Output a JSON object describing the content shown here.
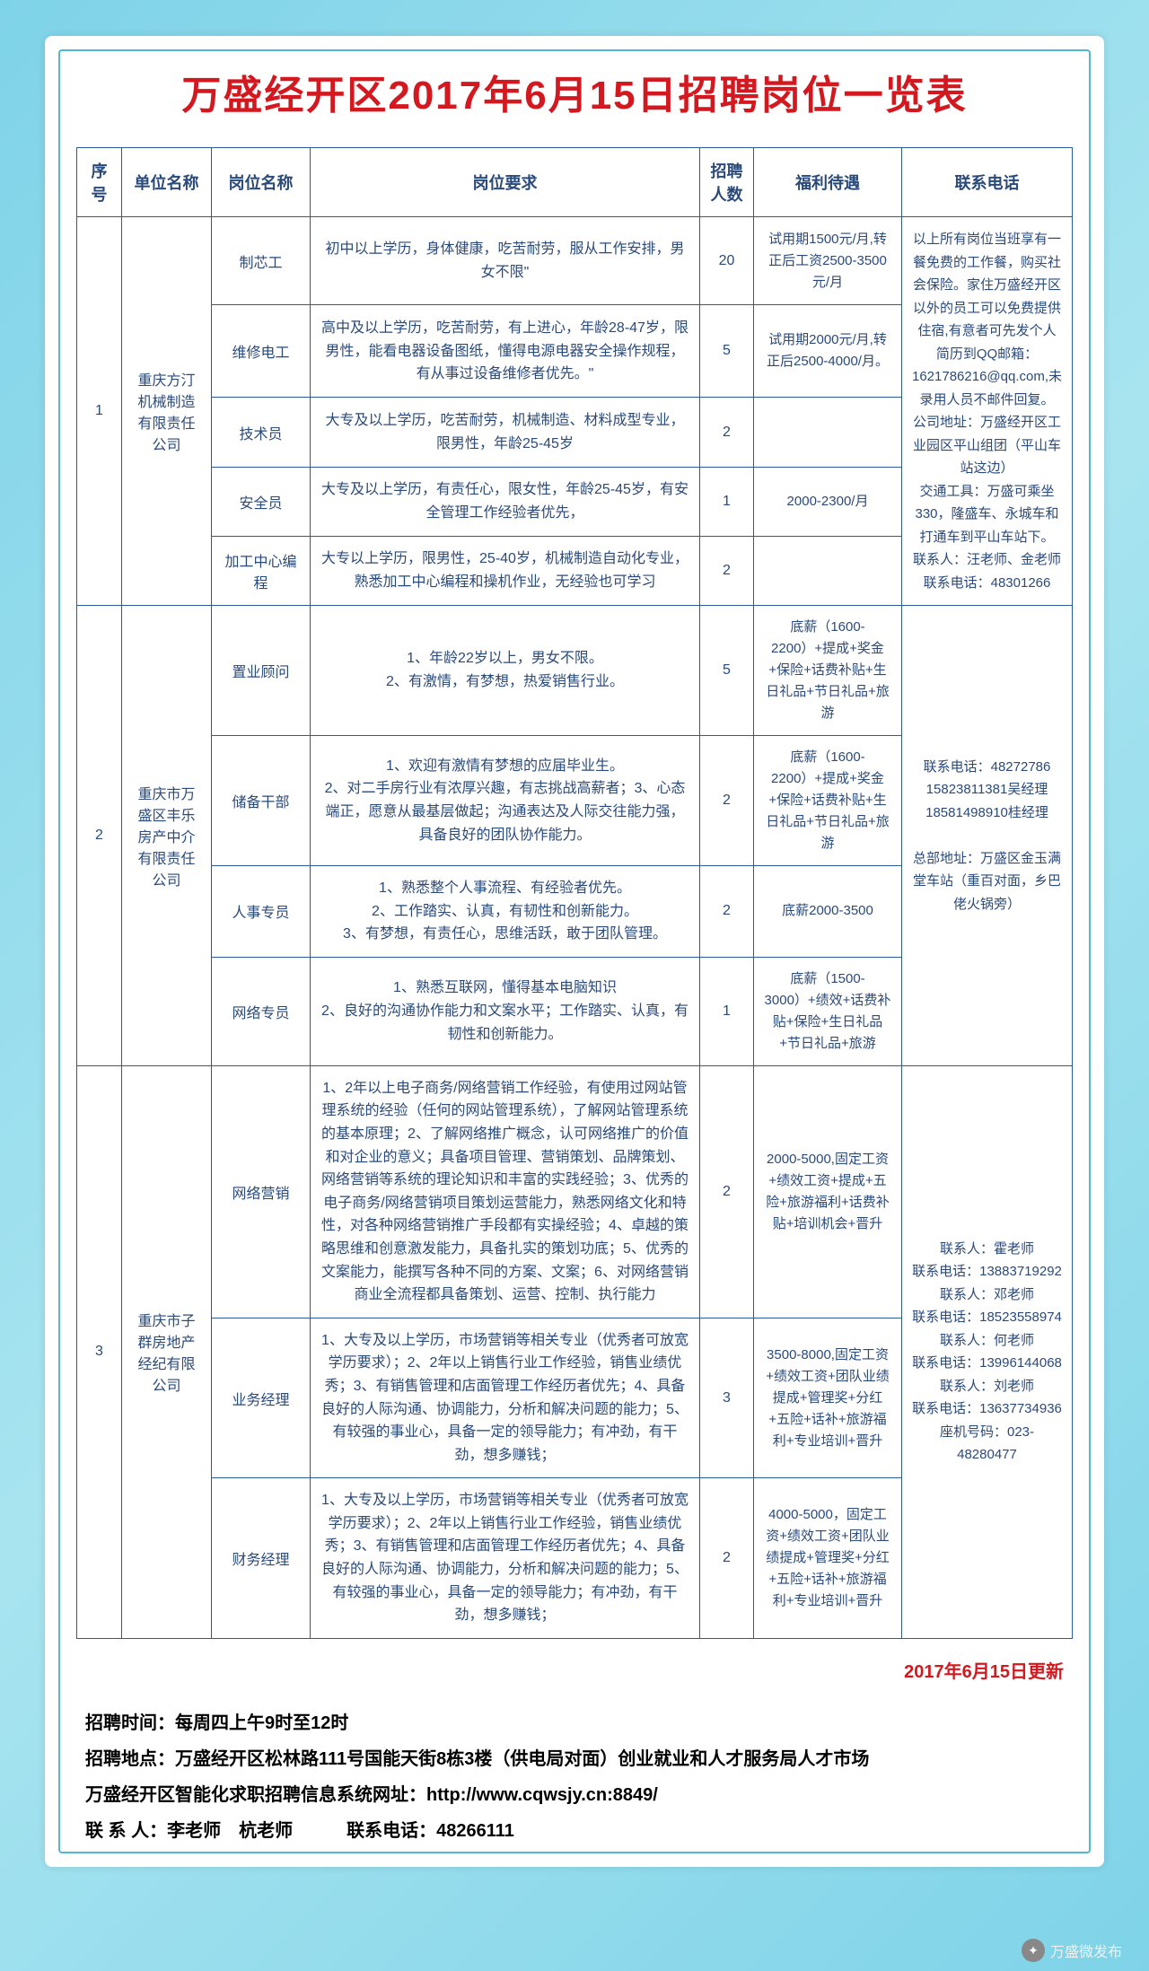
{
  "title": "万盛经开区2017年6月15日招聘岗位一览表",
  "headers": {
    "seq": "序号",
    "company": "单位名称",
    "post": "岗位名称",
    "req": "岗位要求",
    "count": "招聘人数",
    "benefit": "福利待遇",
    "contact": "联系电话"
  },
  "groups": [
    {
      "seq": "1",
      "company": "重庆方汀机械制造有限责任公司",
      "contact": "以上所有岗位当班享有一餐免费的工作餐，购买社会保险。家住万盛经开区以外的员工可以免费提供住宿,有意者可先发个人简历到QQ邮箱：1621786216@qq.com,未录用人员不邮件回复。\n公司地址：万盛经开区工业园区平山组团（平山车站这边）\n交通工具：万盛可乘坐330，隆盛车、永城车和打通车到平山车站下。\n联系人：汪老师、金老师　　联系电话：48301266",
      "rows": [
        {
          "post": "制芯工",
          "req": "初中以上学历，身体健康，吃苦耐劳，服从工作安排，男女不限\"",
          "count": "20",
          "benefit": "试用期1500元/月,转正后工资2500-3500元/月"
        },
        {
          "post": "维修电工",
          "req": "高中及以上学历，吃苦耐劳，有上进心，年龄28-47岁，限男性，能看电器设备图纸，懂得电源电器安全操作规程，有从事过设备维修者优先。\"",
          "count": "5",
          "benefit": "试用期2000元/月,转正后2500-4000/月。"
        },
        {
          "post": "技术员",
          "req": "大专及以上学历，吃苦耐劳，机械制造、材料成型专业，限男性，年龄25-45岁",
          "count": "2",
          "benefit": ""
        },
        {
          "post": "安全员",
          "req": "大专及以上学历，有责任心，限女性，年龄25-45岁，有安全管理工作经验者优先，",
          "count": "1",
          "benefit": "2000-2300/月"
        },
        {
          "post": "加工中心编程",
          "req": "大专以上学历，限男性，25-40岁，机械制造自动化专业，熟悉加工中心编程和操机作业，无经验也可学习",
          "count": "2",
          "benefit": ""
        }
      ]
    },
    {
      "seq": "2",
      "company": "重庆市万盛区丰乐房产中介有限责任公司",
      "contact": "联系电话：48272786\n15823811381吴经理\n18581498910桂经理\n\n总部地址：万盛区金玉满堂车站（重百对面，乡巴佬火锅旁）",
      "rows": [
        {
          "post": "置业顾问",
          "req": "1、年龄22岁以上，男女不限。\n2、有激情，有梦想，热爱销售行业。",
          "count": "5",
          "benefit": "底薪（1600-2200）+提成+奖金+保险+话费补贴+生日礼品+节日礼品+旅游"
        },
        {
          "post": "储备干部",
          "req": "1、欢迎有激情有梦想的应届毕业生。\n2、对二手房行业有浓厚兴趣，有志挑战高薪者；3、心态端正，愿意从最基层做起；沟通表达及人际交往能力强，具备良好的团队协作能力。",
          "count": "2",
          "benefit": "底薪（1600-2200）+提成+奖金+保险+话费补贴+生日礼品+节日礼品+旅游"
        },
        {
          "post": "人事专员",
          "req": "1、熟悉整个人事流程、有经验者优先。\n2、工作踏实、认真，有韧性和创新能力。\n3、有梦想，有责任心，思维活跃，敢于团队管理。",
          "count": "2",
          "benefit": "底薪2000-3500"
        },
        {
          "post": "网络专员",
          "req": "1、熟悉互联网，懂得基本电脑知识\n2、良好的沟通协作能力和文案水平；工作踏实、认真，有韧性和创新能力。",
          "count": "1",
          "benefit": "底薪（1500-3000）+绩效+话费补贴+保险+生日礼品+节日礼品+旅游"
        }
      ]
    },
    {
      "seq": "3",
      "company": "重庆市子群房地产经纪有限公司",
      "contact": "联系人：霍老师\n联系电话：13883719292\n联系人：邓老师\n联系电话：18523558974\n联系人：何老师\n联系电话：13996144068\n联系人：刘老师\n联系电话：13637734936\n座机号码：023-48280477",
      "rows": [
        {
          "post": "网络营销",
          "req": "1、2年以上电子商务/网络营销工作经验，有使用过网站管理系统的经验（任何的网站管理系统），了解网站管理系统的基本原理；2、了解网络推广概念，认可网络推广的价值和对企业的意义；具备项目管理、营销策划、品牌策划、网络营销等系统的理论知识和丰富的实践经验；3、优秀的电子商务/网络营销项目策划运营能力，熟悉网络文化和特性，对各种网络营销推广手段都有实操经验；4、卓越的策略思维和创意激发能力，具备扎实的策划功底；5、优秀的文案能力，能撰写各种不同的方案、文案；6、对网络营销商业全流程都具备策划、运营、控制、执行能力",
          "count": "2",
          "benefit": "2000-5000,固定工资+绩效工资+提成+五险+旅游福利+话费补贴+培训机会+晋升"
        },
        {
          "post": "业务经理",
          "req": "1、大专及以上学历，市场营销等相关专业（优秀者可放宽学历要求）；2、2年以上销售行业工作经验，销售业绩优秀；3、有销售管理和店面管理工作经历者优先；4、具备良好的人际沟通、协调能力，分析和解决问题的能力；5、有较强的事业心，具备一定的领导能力；有冲劲，有干劲，想多赚钱；",
          "count": "3",
          "benefit": "3500-8000,固定工资+绩效工资+团队业绩提成+管理奖+分红+五险+话补+旅游福利+专业培训+晋升"
        },
        {
          "post": "财务经理",
          "req": "1、大专及以上学历，市场营销等相关专业（优秀者可放宽学历要求）；2、2年以上销售行业工作经验，销售业绩优秀；3、有销售管理和店面管理工作经历者优先；4、具备良好的人际沟通、协调能力，分析和解决问题的能力；5、有较强的事业心，具备一定的领导能力；有冲劲，有干劲，想多赚钱；",
          "count": "2",
          "benefit": "4000-5000，固定工资+绩效工资+团队业绩提成+管理奖+分红+五险+话补+旅游福利+专业培训+晋升"
        }
      ]
    }
  ],
  "update_note": "2017年6月15日更新",
  "footer": {
    "l1": "招聘时间：每周四上午9时至12时",
    "l2": "招聘地点：万盛经开区松林路111号国能天街8栋3楼（供电局对面）创业就业和人才服务局人才市场",
    "l3": "万盛经开区智能化求职招聘信息系统网址：http://www.cqwsjy.cn:8849/",
    "l4": "联 系 人：李老师　杭老师　　　联系电话：48266111"
  },
  "badge": "万盛微发布"
}
